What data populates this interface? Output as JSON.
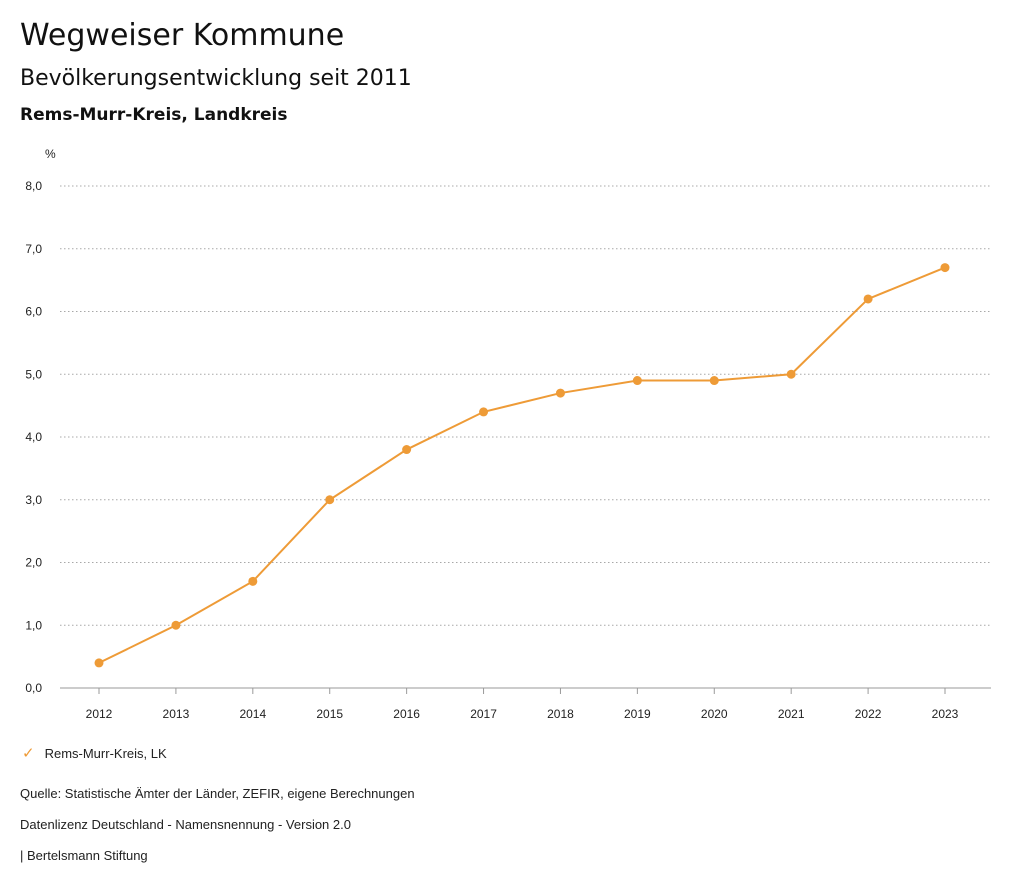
{
  "header": {
    "title": "Wegweiser Kommune",
    "subtitle": "Bevölkerungsentwicklung seit 2011",
    "region": "Rems-Murr-Kreis, Landkreis"
  },
  "chart_data": {
    "type": "line",
    "y_unit": "%",
    "x": [
      "2012",
      "2013",
      "2014",
      "2015",
      "2016",
      "2017",
      "2018",
      "2019",
      "2020",
      "2021",
      "2022",
      "2023"
    ],
    "y_ticks": [
      "0,0",
      "1,0",
      "2,0",
      "3,0",
      "4,0",
      "5,0",
      "6,0",
      "7,0",
      "8,0"
    ],
    "ylim": [
      0,
      8
    ],
    "grid": "horizontal-dotted",
    "legend_position": "bottom-left",
    "series": [
      {
        "name": "Rems-Murr-Kreis, LK",
        "color": "#ee9b37",
        "values": [
          0.4,
          1.0,
          1.7,
          3.0,
          3.8,
          4.4,
          4.7,
          4.9,
          4.9,
          5.0,
          6.2,
          6.7
        ]
      }
    ]
  },
  "legend": {
    "icon": "check-icon",
    "label": "Rems-Murr-Kreis, LK"
  },
  "footer": {
    "source": "Quelle: Statistische Ämter der Länder, ZEFIR, eigene Berechnungen",
    "license": "Datenlizenz Deutschland - Namensnennung - Version 2.0",
    "publisher": "| Bertelsmann Stiftung"
  }
}
